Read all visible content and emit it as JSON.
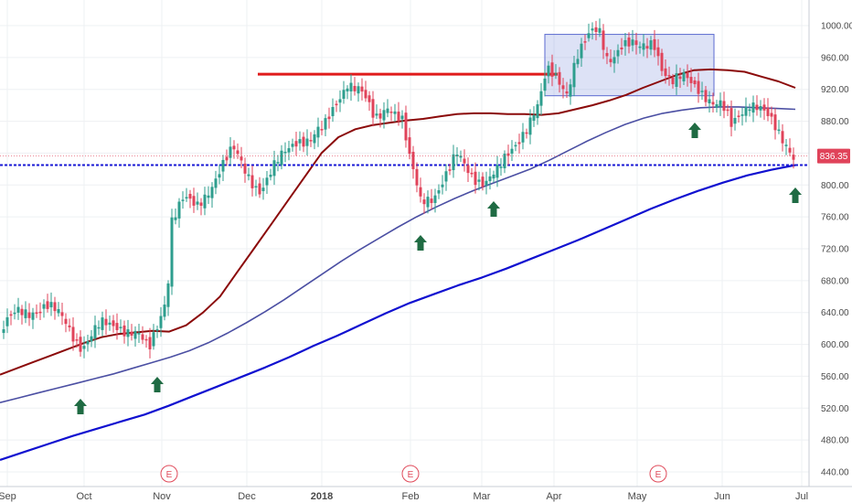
{
  "chart_data": {
    "type": "candlestick",
    "x_tick_labels": [
      "Sep",
      "Oct",
      "Nov",
      "Dec",
      "2018",
      "Feb",
      "Mar",
      "Apr",
      "May",
      "Jun",
      "Jul"
    ],
    "y_tick_values": [
      440,
      480,
      520,
      560,
      600,
      640,
      680,
      720,
      760,
      800,
      840,
      880,
      920,
      960,
      1000
    ],
    "ylim": [
      430,
      1005
    ],
    "last_price": "836.35",
    "horizontal_level": 825,
    "resistance_line": {
      "from": "Dec",
      "to": "Apr",
      "value": 939
    },
    "consolidation_box": {
      "from": "Mar end",
      "to": "late May",
      "high": 989,
      "low": 912
    },
    "earnings_markers": [
      "E",
      "E",
      "E"
    ],
    "moving_averages": [
      {
        "color": "#8b0a0a",
        "values": [
          562,
          570,
          578,
          586,
          594,
          602,
          609,
          613,
          615,
          617,
          616,
          624,
          640,
          660,
          690,
          720,
          750,
          780,
          810,
          840,
          860,
          870,
          875,
          878,
          881,
          883,
          886,
          889,
          890,
          890,
          889,
          889,
          888,
          890,
          895,
          900,
          906,
          913,
          922,
          930,
          938,
          944,
          945,
          944,
          942,
          936,
          930,
          922
        ]
      },
      {
        "color": "#4b4fa3",
        "values": [
          527,
          533,
          539,
          545,
          551,
          557,
          563,
          570,
          577,
          584,
          592,
          602,
          614,
          627,
          641,
          656,
          672,
          688,
          704,
          719,
          733,
          747,
          760,
          772,
          783,
          793,
          802,
          811,
          820,
          831,
          843,
          855,
          866,
          876,
          884,
          890,
          894,
          897,
          898,
          898,
          897,
          896,
          895
        ]
      },
      {
        "color": "#1010d0",
        "values": [
          455,
          465,
          475,
          485,
          494,
          503,
          512,
          523,
          535,
          547,
          559,
          571,
          584,
          598,
          611,
          625,
          639,
          652,
          663,
          674,
          684,
          695,
          707,
          719,
          731,
          744,
          757,
          770,
          782,
          793,
          803,
          812,
          819,
          825
        ]
      }
    ],
    "colors": {
      "up": "#2e9e8e",
      "down": "#e0435a",
      "arrow": "#1f6b43"
    }
  }
}
